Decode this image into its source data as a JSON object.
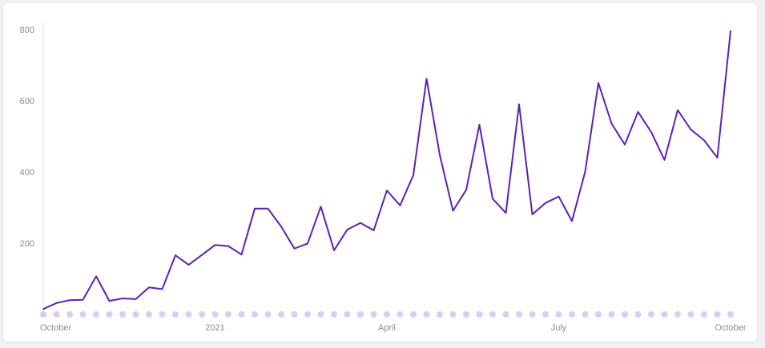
{
  "chart_data": {
    "type": "line",
    "title": "",
    "xlabel": "",
    "ylabel": "",
    "ylim": [
      0,
      800
    ],
    "y_ticks": [
      "800",
      "600",
      "400",
      "200"
    ],
    "y_tick_values": [
      800,
      600,
      400,
      200
    ],
    "x_ticks": [
      "October",
      "2021",
      "April",
      "July",
      "October"
    ],
    "x_tick_values": [
      "2020-10-04",
      "2021-01-03",
      "2021-04-04",
      "2021-07-04",
      "2021-10-03"
    ],
    "grid": false,
    "legend": "none",
    "x": [
      "2020-10-04",
      "2020-10-11",
      "2020-10-18",
      "2020-10-25",
      "2020-11-01",
      "2020-11-08",
      "2020-11-15",
      "2020-11-22",
      "2020-11-29",
      "2020-12-06",
      "2020-12-13",
      "2020-12-20",
      "2020-12-27",
      "2021-01-03",
      "2021-01-10",
      "2021-01-17",
      "2021-01-24",
      "2021-01-31",
      "2021-02-07",
      "2021-02-14",
      "2021-02-21",
      "2021-02-28",
      "2021-03-07",
      "2021-03-14",
      "2021-03-21",
      "2021-03-28",
      "2021-04-04",
      "2021-04-11",
      "2021-04-18",
      "2021-04-25",
      "2021-05-02",
      "2021-05-09",
      "2021-05-16",
      "2021-05-23",
      "2021-05-30",
      "2021-06-06",
      "2021-06-13",
      "2021-06-20",
      "2021-06-27",
      "2021-07-04",
      "2021-07-11",
      "2021-07-18",
      "2021-07-25",
      "2021-08-01",
      "2021-08-08",
      "2021-08-15",
      "2021-08-22",
      "2021-08-29",
      "2021-09-05",
      "2021-09-12",
      "2021-09-19",
      "2021-09-26",
      "2021-10-03"
    ],
    "series": [
      {
        "color": "#5b21b6",
        "values": [
          15,
          32,
          40,
          41,
          107,
          38,
          45,
          43,
          76,
          71,
          166,
          139,
          167,
          195,
          192,
          168,
          297,
          297,
          247,
          185,
          199,
          303,
          180,
          238,
          257,
          236,
          348,
          306,
          391,
          662,
          448,
          291,
          350,
          533,
          325,
          285,
          590,
          281,
          313,
          331,
          262,
          401,
          650,
          536,
          477,
          569,
          512,
          434,
          574,
          519,
          489,
          440,
          796
        ]
      }
    ],
    "baseline_marker_color": "#d9ccf7",
    "axis_color": "#e3e3e8"
  }
}
